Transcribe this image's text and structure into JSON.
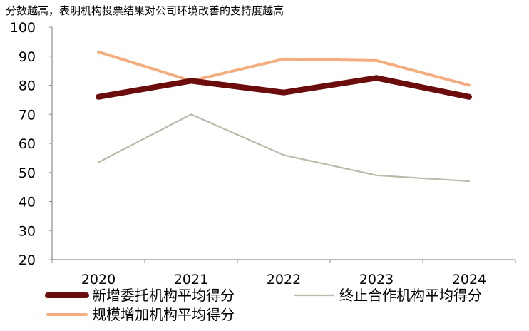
{
  "note": "分数越高，表明机构投票结果对公司环境改善的支持度越高",
  "chart_data": {
    "type": "line",
    "title": "",
    "xlabel": "",
    "ylabel": "",
    "categories": [
      "2020",
      "2021",
      "2022",
      "2023",
      "2024"
    ],
    "ylim": [
      20,
      100
    ],
    "yticks": [
      20,
      30,
      40,
      50,
      60,
      70,
      80,
      90,
      100
    ],
    "grid": false,
    "legend_position": "bottom",
    "series": [
      {
        "name": "新增委托机构平均得分",
        "values": [
          76,
          81.5,
          77.5,
          82.5,
          76
        ],
        "color": "#6b0d0d",
        "style": "thick"
      },
      {
        "name": "终止合作机构平均得分",
        "values": [
          53.5,
          70,
          56,
          49,
          47
        ],
        "color": "#b9baa9",
        "style": "thin"
      },
      {
        "name": "规模增加机构平均得分",
        "values": [
          91.5,
          81.5,
          89,
          88.5,
          80
        ],
        "color": "#f4ad7f",
        "style": "medium"
      }
    ]
  }
}
